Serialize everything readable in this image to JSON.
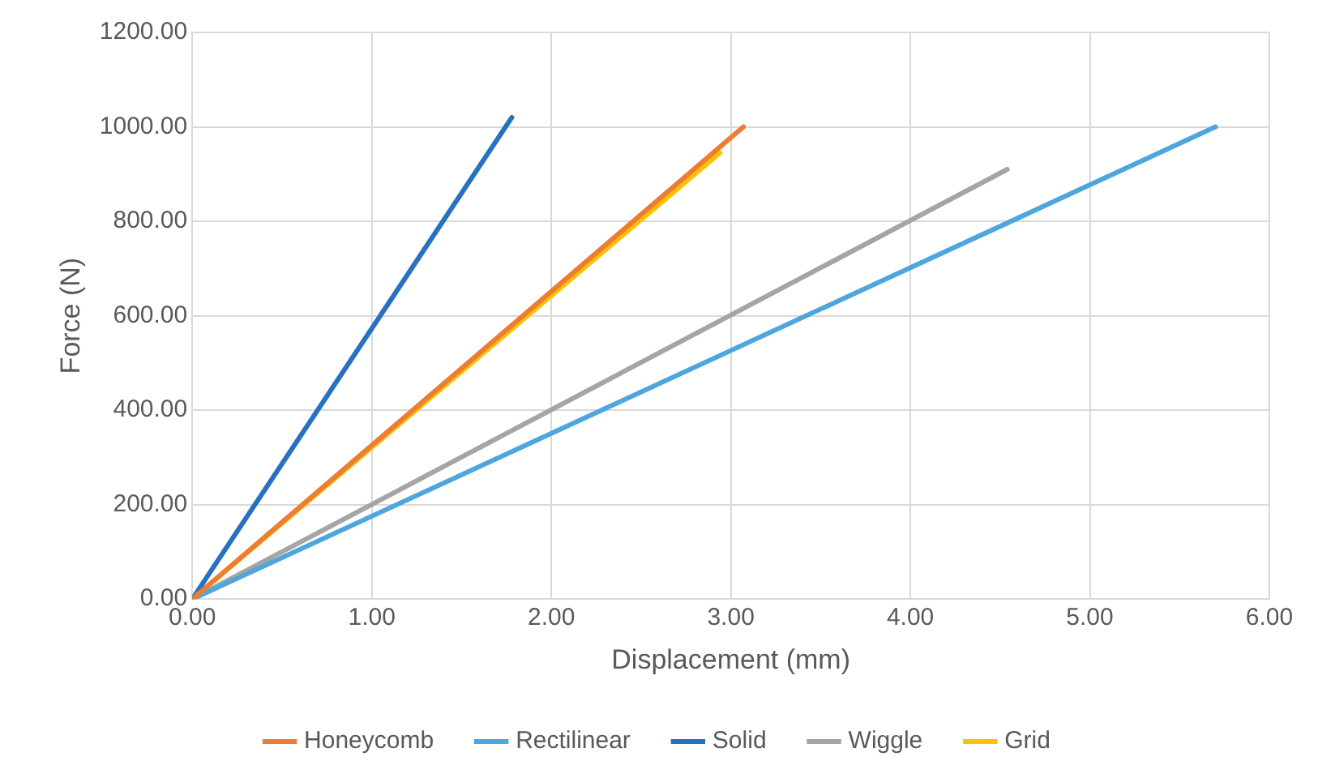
{
  "chart_data": {
    "type": "line",
    "xlabel": "Displacement (mm)",
    "ylabel": "Force (N)",
    "series": [
      {
        "name": "Honeycomb",
        "color": "#ed7d31",
        "x": [
          0,
          3.07
        ],
        "values": [
          0,
          1000
        ]
      },
      {
        "name": "Rectilinear",
        "color": "#4ea6dc",
        "x": [
          0,
          5.7
        ],
        "values": [
          0,
          1000
        ]
      },
      {
        "name": "Solid",
        "color": "#2672c0",
        "x": [
          0,
          1.78
        ],
        "values": [
          0,
          1020
        ]
      },
      {
        "name": "Wiggle",
        "color": "#a5a5a5",
        "x": [
          0,
          4.54
        ],
        "values": [
          0,
          910
        ]
      },
      {
        "name": "Grid",
        "color": "#ffc000",
        "x": [
          0,
          2.94
        ],
        "values": [
          0,
          945
        ]
      }
    ],
    "xlim": [
      0,
      6
    ],
    "xticks": [
      {
        "value": 0,
        "label": "0.00"
      },
      {
        "value": 1,
        "label": "1.00"
      },
      {
        "value": 2,
        "label": "2.00"
      },
      {
        "value": 3,
        "label": "3.00"
      },
      {
        "value": 4,
        "label": "4.00"
      },
      {
        "value": 5,
        "label": "5.00"
      },
      {
        "value": 6,
        "label": "6.00"
      }
    ],
    "ylim": [
      0,
      1200
    ],
    "yticks": [
      {
        "value": 0,
        "label": "0.00"
      },
      {
        "value": 200,
        "label": "200.00"
      },
      {
        "value": 400,
        "label": "400.00"
      },
      {
        "value": 600,
        "label": "600.00"
      },
      {
        "value": 800,
        "label": "800.00"
      },
      {
        "value": 1000,
        "label": "1000.00"
      },
      {
        "value": 1200,
        "label": "1200.00"
      }
    ],
    "grid": true,
    "legend": "bottom",
    "marker": "none",
    "line_style": "solid"
  }
}
